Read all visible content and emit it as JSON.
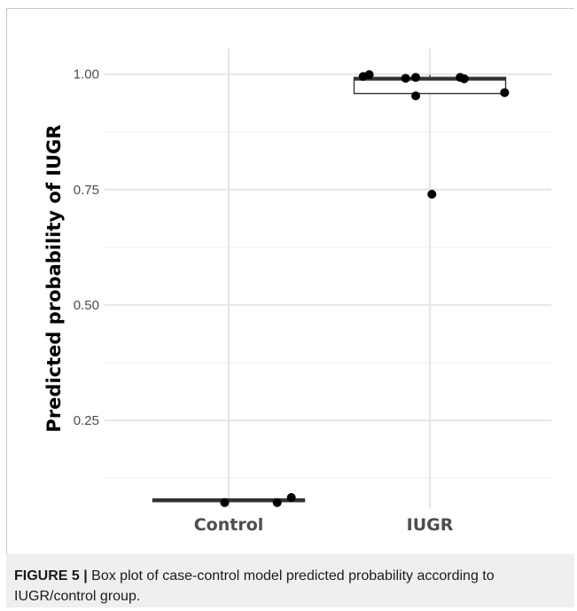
{
  "chart_data": {
    "type": "box",
    "categories": [
      "Control",
      "IUGR"
    ],
    "ylabel": "Predicted probability of IUGR",
    "xlabel": "",
    "y_ticks": [
      0.25,
      0.5,
      0.75,
      1.0
    ],
    "y_tick_labels": [
      "0.25",
      "0.50",
      "0.75",
      "1.00"
    ],
    "ylim": [
      0.06,
      1.055
    ],
    "grid": true,
    "boxes": [
      {
        "category": "Control",
        "q1": 0.074,
        "median": 0.078,
        "q3": 0.08,
        "whisker_low": 0.074,
        "whisker_high": 0.08
      },
      {
        "category": "IUGR",
        "q1": 0.958,
        "median": 0.989,
        "q3": 0.993,
        "whisker_low": 0.958,
        "whisker_high": 0.999
      }
    ],
    "points": [
      {
        "category": "Control",
        "jitter": -0.02,
        "y": 0.072
      },
      {
        "category": "Control",
        "jitter": 0.24,
        "y": 0.072
      },
      {
        "category": "Control",
        "jitter": 0.31,
        "y": 0.083
      },
      {
        "category": "IUGR",
        "jitter": -0.33,
        "y": 0.995
      },
      {
        "category": "IUGR",
        "jitter": -0.3,
        "y": 0.999
      },
      {
        "category": "IUGR",
        "jitter": -0.12,
        "y": 0.991
      },
      {
        "category": "IUGR",
        "jitter": -0.07,
        "y": 0.993
      },
      {
        "category": "IUGR",
        "jitter": -0.07,
        "y": 0.953
      },
      {
        "category": "IUGR",
        "jitter": 0.15,
        "y": 0.993
      },
      {
        "category": "IUGR",
        "jitter": 0.17,
        "y": 0.99
      },
      {
        "category": "IUGR",
        "jitter": 0.37,
        "y": 0.96
      },
      {
        "category": "IUGR",
        "jitter": 0.01,
        "y": 0.74
      }
    ]
  },
  "caption": {
    "label": "FIGURE 5 |",
    "text": " Box plot of case-control model predicted probability according to IUGR/control group."
  }
}
